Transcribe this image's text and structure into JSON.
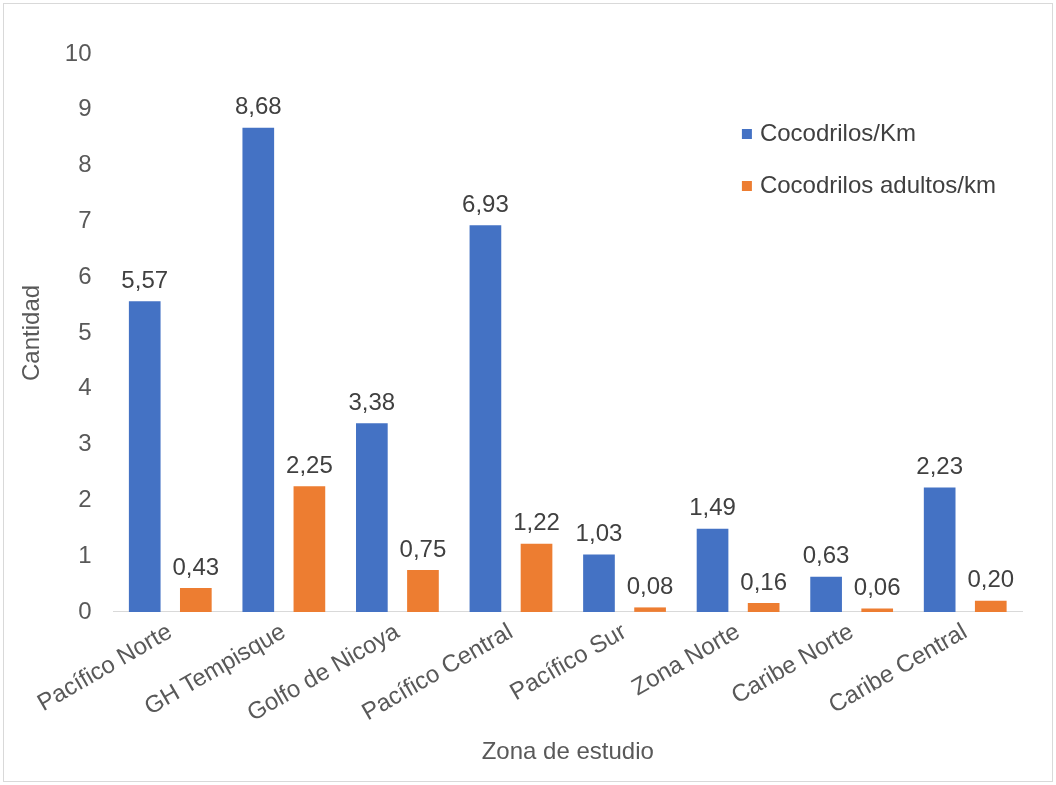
{
  "chart_data": {
    "type": "bar",
    "xlabel": "Zona de estudio",
    "ylabel": "Cantidad",
    "categories": [
      "Pacífico Norte",
      "GH Tempisque",
      "Golfo de Nicoya",
      "Pacífico Central",
      "Pacífico Sur",
      "Zona Norte",
      "Caribe Norte",
      "Caribe Central"
    ],
    "series": [
      {
        "name": "Cocodrilos/Km",
        "color": "#4472c4",
        "values": [
          5.57,
          8.68,
          3.38,
          6.93,
          1.03,
          1.49,
          0.63,
          2.23
        ],
        "value_labels": [
          "5,57",
          "8,68",
          "3,38",
          "6,93",
          "1,03",
          "1,49",
          "0,63",
          "2,23"
        ]
      },
      {
        "name": "Cocodrilos adultos/km",
        "color": "#ed7d31",
        "values": [
          0.43,
          2.25,
          0.75,
          1.22,
          0.08,
          0.16,
          0.06,
          0.2
        ],
        "value_labels": [
          "0,43",
          "2,25",
          "0,75",
          "1,22",
          "0,08",
          "0,16",
          "0,06",
          "0,20"
        ]
      }
    ],
    "ylim": [
      0,
      10
    ],
    "yticks": [
      0,
      1,
      2,
      3,
      4,
      5,
      6,
      7,
      8,
      9,
      10
    ],
    "legend": "top right",
    "grid": false
  }
}
